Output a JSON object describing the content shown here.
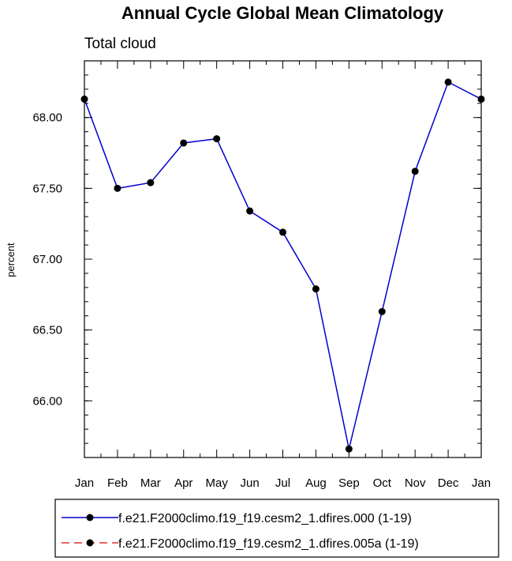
{
  "chart_data": {
    "type": "line",
    "title": "Annual Cycle Global Mean Climatology",
    "subtitle": "Total cloud",
    "ylabel": "percent",
    "categories": [
      "Jan",
      "Feb",
      "Mar",
      "Apr",
      "May",
      "Jun",
      "Jul",
      "Aug",
      "Sep",
      "Oct",
      "Nov",
      "Dec",
      "Jan"
    ],
    "ylim": [
      65.6,
      68.4
    ],
    "yticks": [
      "66.00",
      "66.50",
      "67.00",
      "67.50",
      "68.00"
    ],
    "series": [
      {
        "name": "f.e21.F2000climo.f19_f19.cesm2_1.dfires.000 (1-19)",
        "color": "#0000cc",
        "dash": "solid",
        "values": [
          68.13,
          67.5,
          67.54,
          67.82,
          67.85,
          67.34,
          67.19,
          66.79,
          65.66,
          66.63,
          67.62,
          68.25,
          68.13
        ]
      }
    ],
    "legend": [
      {
        "label": "f.e21.F2000climo.f19_f19.cesm2_1.dfires.000 (1-19)",
        "color": "#0000cc",
        "dash": "solid"
      },
      {
        "label": "f.e21.F2000climo.f19_f19.cesm2_1.dfires.005a (1-19)",
        "color": "#e03030",
        "dash": "dashed"
      }
    ],
    "legend_position": "bottom"
  }
}
